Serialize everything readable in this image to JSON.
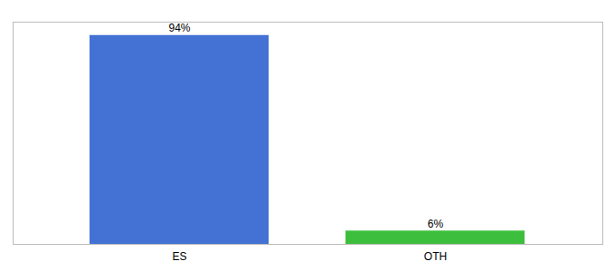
{
  "chart_data": {
    "type": "bar",
    "categories": [
      "ES",
      "OTH"
    ],
    "values": [
      94,
      6
    ],
    "value_labels": [
      "94%",
      "6%"
    ],
    "colors": [
      "#4472d4",
      "#3dbf3d"
    ],
    "ylim": [
      0,
      100
    ],
    "data_labels": true,
    "tick_labels": "x"
  }
}
